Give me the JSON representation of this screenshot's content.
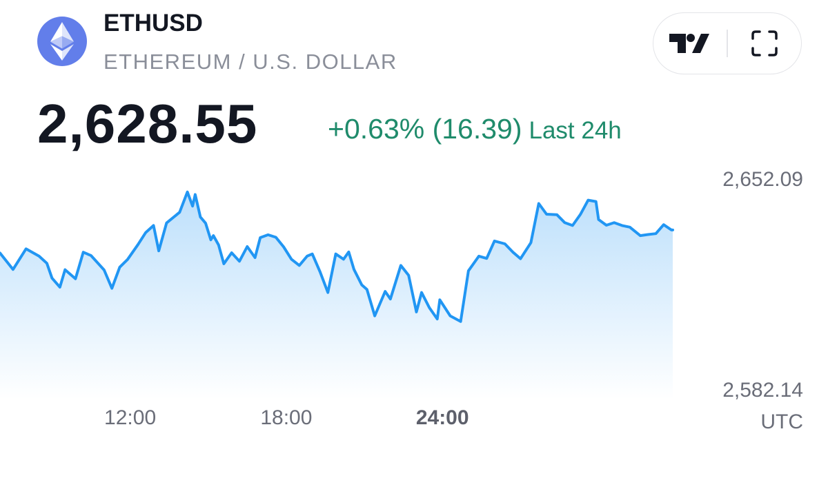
{
  "header": {
    "symbol": "ETHUSD",
    "pair_name": "ETHEREUM / U.S. DOLLAR",
    "logo_icon": "ethereum-icon",
    "logo_color": "#627eea"
  },
  "toolbar": {
    "buttons": [
      {
        "name": "tradingview-logo-icon"
      },
      {
        "name": "fullscreen-icon"
      }
    ]
  },
  "quote": {
    "price": "2,628.55",
    "change": "+0.63% (16.39)",
    "period": "Last 24h",
    "change_color": "#1f8b6b"
  },
  "chart_data": {
    "type": "area",
    "line_color": "#2196f3",
    "y_labels": [
      "2,652.09",
      "2,582.14"
    ],
    "y_max": 2652.09,
    "y_min": 2582.14,
    "x_ticks": [
      {
        "label": "12:00",
        "hour": 12,
        "bold": false
      },
      {
        "label": "18:00",
        "hour": 18,
        "bold": false
      },
      {
        "label": "24:00",
        "hour": 24,
        "bold": true
      }
    ],
    "x_axis_unit": "UTC",
    "x_range_hours": [
      7,
      32.85
    ],
    "grid": false,
    "legend": "none",
    "series": [
      {
        "x": [
          7.0,
          7.5,
          8.0,
          8.5,
          8.8,
          9.0,
          9.3,
          9.5,
          9.9,
          10.2,
          10.5,
          11.0,
          11.3,
          11.6,
          11.9,
          12.3,
          12.6,
          12.9,
          13.1,
          13.4,
          13.9,
          14.2,
          14.4,
          14.5,
          14.7,
          14.9,
          15.1,
          15.2,
          15.4,
          15.6,
          15.9,
          16.2,
          16.5,
          16.8,
          17.0,
          17.3,
          17.6,
          17.9,
          18.2,
          18.5,
          18.8,
          19.0,
          19.3,
          19.6,
          19.9,
          20.2,
          20.4,
          20.6,
          20.9,
          21.1,
          21.4,
          21.8,
          22.0,
          22.4,
          22.7,
          23.0,
          23.2,
          23.5,
          23.8,
          23.9,
          24.3,
          24.7,
          25.0,
          25.4,
          25.7,
          26.0,
          26.4,
          26.7,
          27.0,
          27.4,
          27.7,
          28.0,
          28.4,
          28.7,
          29.0,
          29.3,
          29.6,
          29.9,
          30.0,
          30.3,
          30.6,
          30.9,
          31.2,
          31.6,
          31.9,
          32.2,
          32.5,
          32.8,
          32.85
        ],
        "y": [
          2626.3,
          2620.5,
          2627.8,
          2625.2,
          2622.7,
          2617.4,
          2614.2,
          2620.4,
          2617.2,
          2626.6,
          2625.4,
          2620.3,
          2613.8,
          2621.3,
          2624.0,
          2629.3,
          2633.6,
          2636.1,
          2627.1,
          2637.0,
          2640.8,
          2648.0,
          2643.0,
          2647.1,
          2639.1,
          2636.9,
          2631.0,
          2632.5,
          2629.2,
          2622.5,
          2626.4,
          2623.4,
          2628.6,
          2624.7,
          2631.8,
          2632.8,
          2631.9,
          2628.5,
          2624.1,
          2621.9,
          2625.2,
          2626.0,
          2619.6,
          2612.3,
          2626.0,
          2624.1,
          2626.7,
          2620.5,
          2615.0,
          2613.4,
          2604.0,
          2612.7,
          2610.0,
          2621.9,
          2618.4,
          2605.4,
          2612.3,
          2606.9,
          2602.9,
          2609.7,
          2604.0,
          2602.0,
          2620.0,
          2625.2,
          2624.4,
          2630.6,
          2629.6,
          2626.7,
          2624.3,
          2630.0,
          2643.9,
          2640.1,
          2639.9,
          2637.1,
          2636.1,
          2640.0,
          2645.1,
          2644.6,
          2638.2,
          2636.2,
          2637.1,
          2636.1,
          2635.5,
          2632.5,
          2632.9,
          2633.2,
          2636.4,
          2634.5,
          2634.5
        ]
      }
    ]
  }
}
